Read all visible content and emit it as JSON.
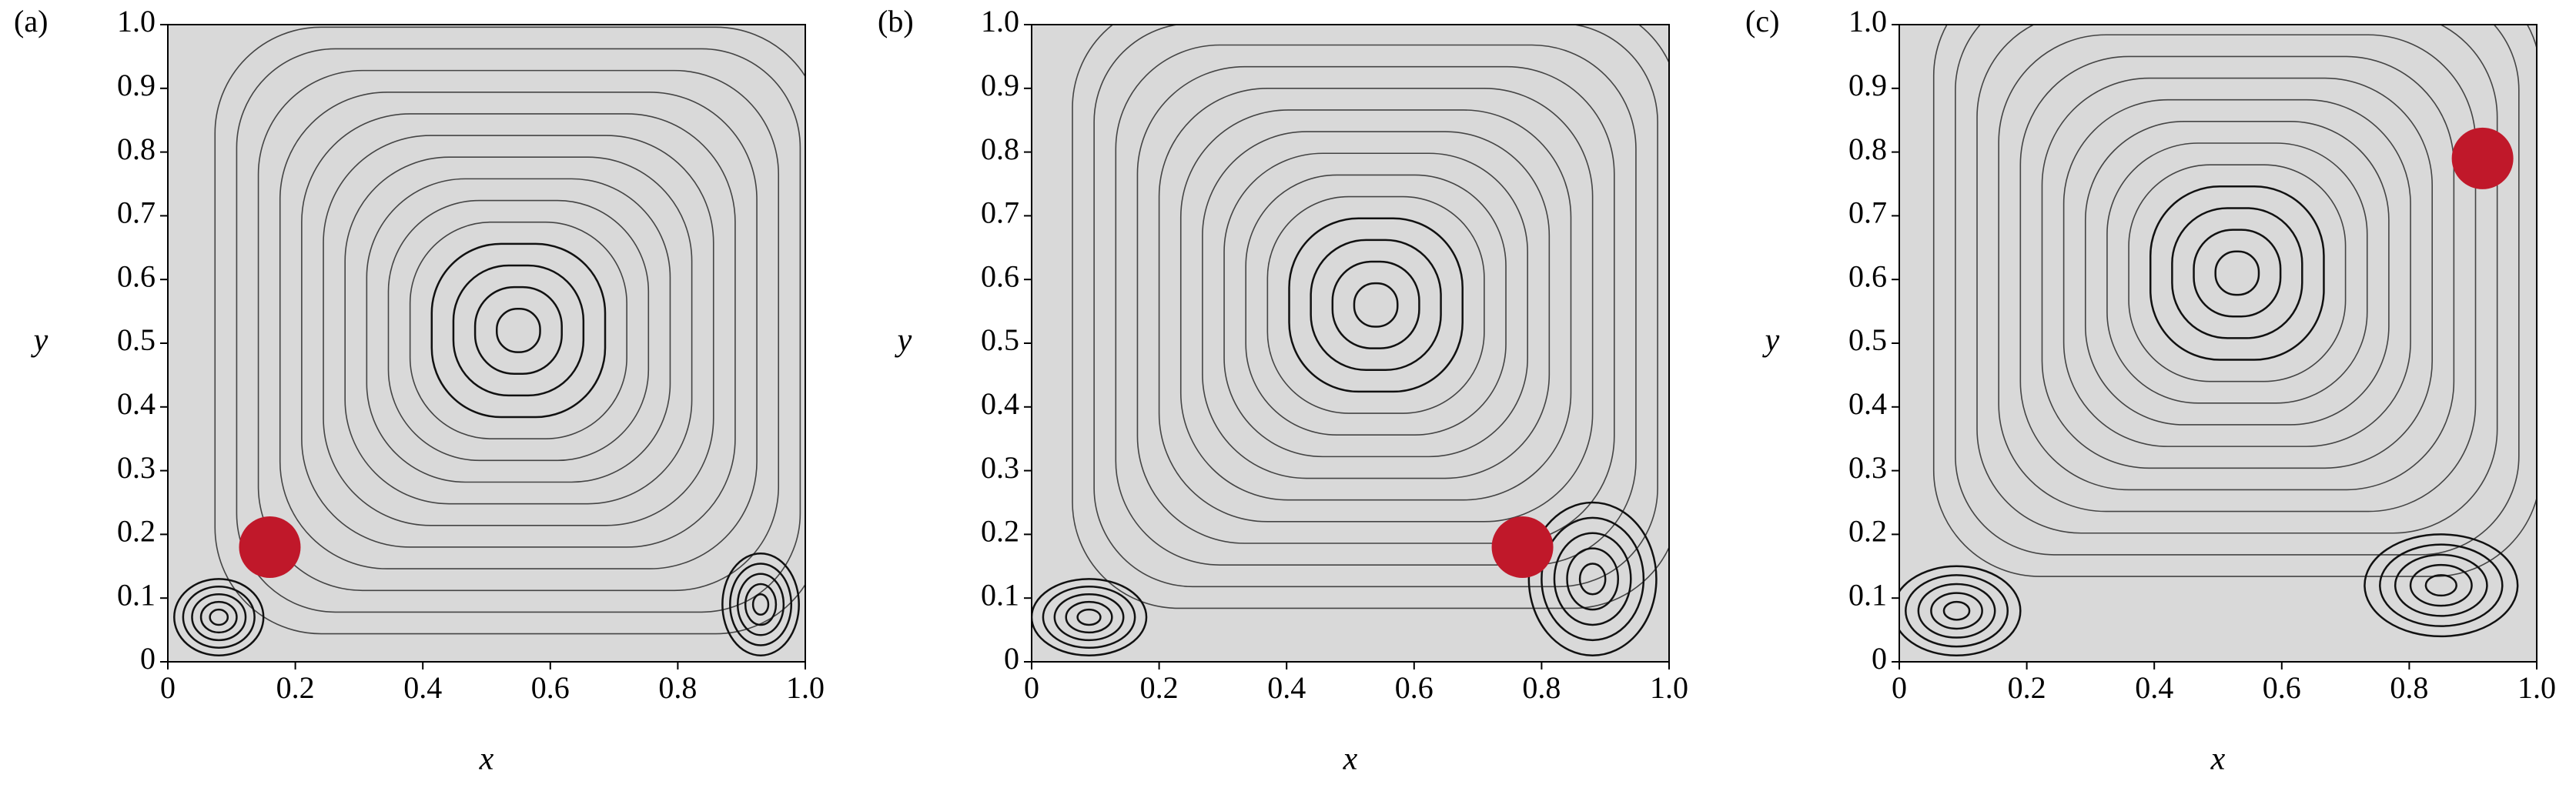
{
  "chart_data": [
    {
      "type": "scatter",
      "label": "(a)",
      "xlabel": "x",
      "ylabel": "y",
      "x": [
        0.16
      ],
      "y": [
        0.18
      ],
      "color": "#c0182a",
      "xlim": [
        0,
        1
      ],
      "ylim": [
        0,
        1
      ],
      "xticks": [
        0,
        0.2,
        0.4,
        0.6,
        0.8,
        {
          "value": 1,
          "label": "1.0"
        }
      ],
      "yticks": [
        0,
        0.1,
        0.2,
        0.3,
        0.4,
        0.5,
        0.6,
        0.7,
        0.8,
        0.9,
        {
          "value": 1,
          "label": "1.0"
        }
      ]
    },
    {
      "type": "scatter",
      "label": "(b)",
      "xlabel": "x",
      "ylabel": "y",
      "x": [
        0.77
      ],
      "y": [
        0.18
      ],
      "color": "#c0182a",
      "xlim": [
        0,
        1
      ],
      "ylim": [
        0,
        1
      ],
      "xticks": [
        0,
        0.2,
        0.4,
        0.6,
        0.8,
        {
          "value": 1,
          "label": "1.0"
        }
      ],
      "yticks": [
        0,
        0.1,
        0.2,
        0.3,
        0.4,
        0.5,
        0.6,
        0.7,
        0.8,
        0.9,
        {
          "value": 1,
          "label": "1.0"
        }
      ]
    },
    {
      "type": "scatter",
      "label": "(c)",
      "xlabel": "x",
      "ylabel": "y",
      "x": [
        0.915
      ],
      "y": [
        0.79
      ],
      "color": "#c0182a",
      "xlim": [
        0,
        1
      ],
      "ylim": [
        0,
        1
      ],
      "xticks": [
        0,
        0.2,
        0.4,
        0.6,
        0.8,
        {
          "value": 1,
          "label": "1.0"
        }
      ],
      "yticks": [
        0,
        0.1,
        0.2,
        0.3,
        0.4,
        0.5,
        0.6,
        0.7,
        0.8,
        0.9,
        {
          "value": 1,
          "label": "1.0"
        }
      ]
    }
  ]
}
